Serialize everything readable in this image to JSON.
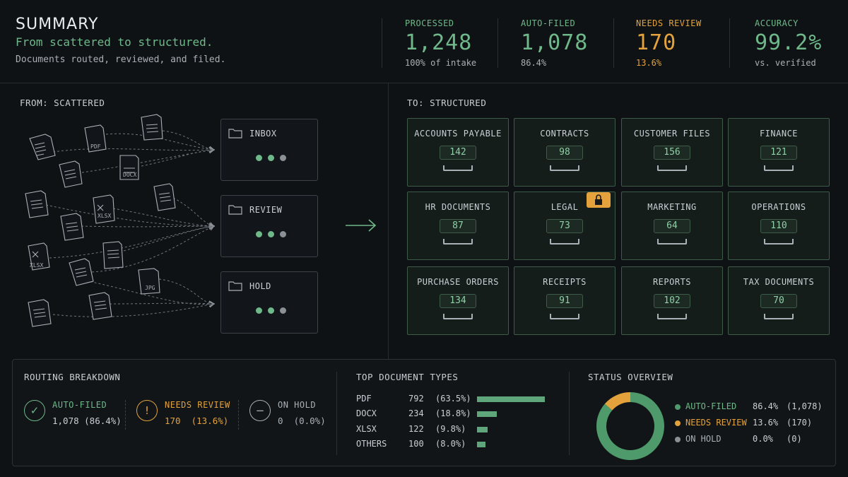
{
  "header": {
    "title": "SUMMARY",
    "subtitle": "From scattered to structured.",
    "description": "Documents routed, reviewed, and filed."
  },
  "kpis": [
    {
      "label": "PROCESSED",
      "value": "1,248",
      "sub": "100% of intake",
      "tone": "green"
    },
    {
      "label": "AUTO-FILED",
      "value": "1,078",
      "sub": "86.4%",
      "tone": "green"
    },
    {
      "label": "NEEDS REVIEW",
      "value": "170",
      "sub": "13.6%",
      "tone": "orange"
    },
    {
      "label": "ACCURACY",
      "value": "99.2%",
      "sub": "vs. verified",
      "tone": "green"
    }
  ],
  "left": {
    "label": "FROM: SCATTERED",
    "file_tags": [
      "PDF",
      "DOCX",
      "XLSX",
      "XLSX",
      "JPG"
    ],
    "queues": [
      {
        "name": "INBOX"
      },
      {
        "name": "REVIEW"
      },
      {
        "name": "HOLD"
      }
    ]
  },
  "right": {
    "label": "TO: STRUCTURED",
    "folders": [
      {
        "name": "ACCOUNTS PAYABLE",
        "count": "142"
      },
      {
        "name": "CONTRACTS",
        "count": "98"
      },
      {
        "name": "CUSTOMER FILES",
        "count": "156"
      },
      {
        "name": "FINANCE",
        "count": "121"
      },
      {
        "name": "HR DOCUMENTS",
        "count": "87"
      },
      {
        "name": "LEGAL",
        "count": "73",
        "locked": true
      },
      {
        "name": "MARKETING",
        "count": "64"
      },
      {
        "name": "OPERATIONS",
        "count": "110"
      },
      {
        "name": "PURCHASE ORDERS",
        "count": "134"
      },
      {
        "name": "RECEIPTS",
        "count": "91"
      },
      {
        "name": "REPORTS",
        "count": "102"
      },
      {
        "name": "TAX DOCUMENTS",
        "count": "70"
      }
    ]
  },
  "routing": {
    "title": "ROUTING BREAKDOWN",
    "items": [
      {
        "label": "AUTO-FILED",
        "value": "1,078 (86.4%)",
        "icon": "check-icon"
      },
      {
        "label": "NEEDS REVIEW",
        "value": "170  (13.6%)",
        "icon": "alert-icon"
      },
      {
        "label": "ON HOLD",
        "value": "0  (0.0%)",
        "icon": "minus-icon"
      }
    ]
  },
  "doc_types": {
    "title": "TOP DOCUMENT TYPES",
    "rows": [
      {
        "name": "PDF",
        "count": "792",
        "pct": "(63.5%)",
        "fraction": 0.635
      },
      {
        "name": "DOCX",
        "count": "234",
        "pct": "(18.8%)",
        "fraction": 0.188
      },
      {
        "name": "XLSX",
        "count": "122",
        "pct": "(9.8%)",
        "fraction": 0.098
      },
      {
        "name": "OTHERS",
        "count": "100",
        "pct": "(8.0%)",
        "fraction": 0.08
      }
    ]
  },
  "status": {
    "title": "STATUS OVERVIEW",
    "rows": [
      {
        "label": "AUTO-FILED",
        "pct": "86.4%",
        "count": "(1,078)",
        "fraction": 0.864,
        "color": "#4f9a6a"
      },
      {
        "label": "NEEDS REVIEW",
        "pct": "13.6%",
        "count": "(170)",
        "fraction": 0.136,
        "color": "#e3a23c"
      },
      {
        "label": "ON HOLD",
        "pct": "0.0%",
        "count": "(0)",
        "fraction": 0.0,
        "color": "#8a9196"
      }
    ]
  },
  "colors": {
    "accent_green": "#6fb88a",
    "accent_orange": "#e3a23c",
    "background": "#0f1215"
  }
}
